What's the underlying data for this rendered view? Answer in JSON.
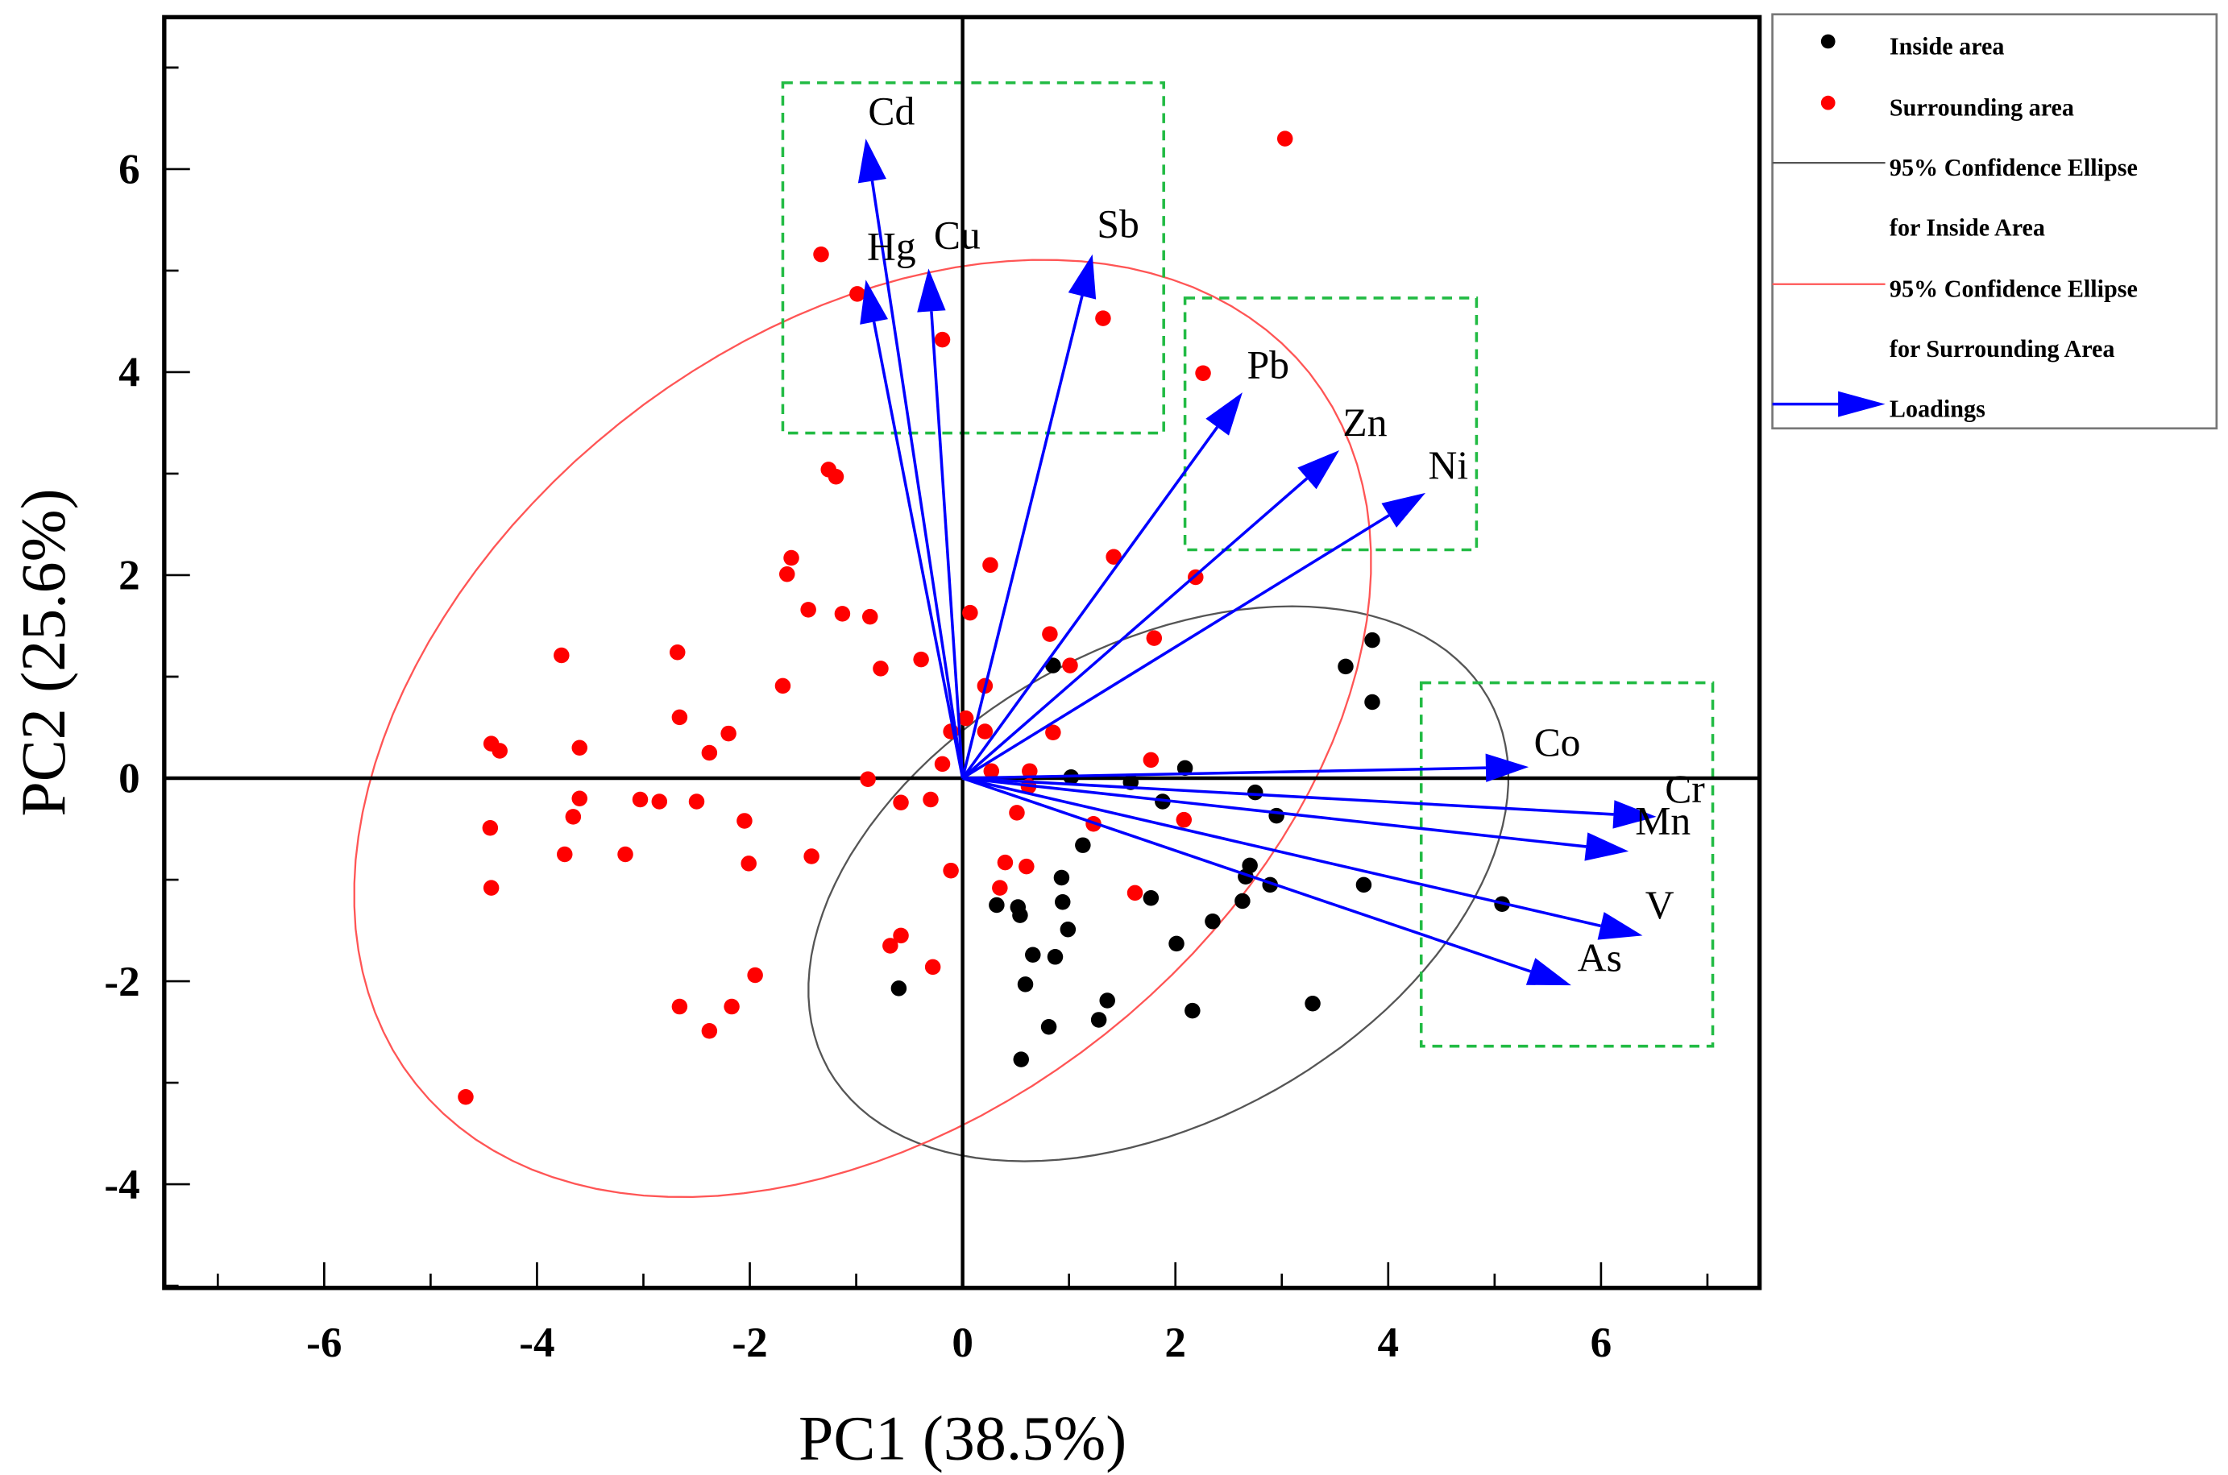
{
  "chart_data": {
    "type": "scatter",
    "subtype": "pca-biplot",
    "xlabel": "PC1 (38.5%)",
    "ylabel": "PC2 (25.6%)",
    "xlim": [
      -7.5,
      7.5
    ],
    "ylim": [
      -5,
      7.5
    ],
    "xticks": [
      -6,
      -4,
      -2,
      0,
      2,
      4,
      6
    ],
    "yticks": [
      -4,
      -2,
      0,
      2,
      4,
      6
    ],
    "grid": false,
    "legend_position": "outside-right-top",
    "colors": {
      "inside": "#000000",
      "surrounding": "#ff0000",
      "inside_ellipse": "#555555",
      "surrounding_ellipse": "#ff5555",
      "loadings": "#0000ff",
      "boxes": "#22bb44"
    },
    "legend": [
      {
        "label": "Inside area",
        "kind": "marker-black"
      },
      {
        "label": "Surrounding area",
        "kind": "marker-red"
      },
      {
        "label": "95% Confidence Ellipse",
        "label2": "for Inside Area",
        "kind": "line-gray"
      },
      {
        "label": "95% Confidence Ellipse",
        "label2": "for Surrounding Area",
        "kind": "line-red"
      },
      {
        "label": "Loadings",
        "kind": "arrow-blue"
      }
    ],
    "series": [
      {
        "name": "Inside area",
        "points": [
          [
            3.85,
            1.36
          ],
          [
            3.6,
            1.1
          ],
          [
            3.85,
            0.75
          ],
          [
            0.85,
            1.11
          ],
          [
            2.09,
            0.1
          ],
          [
            1.02,
            0.01
          ],
          [
            1.58,
            -0.04
          ],
          [
            2.75,
            -0.14
          ],
          [
            1.88,
            -0.23
          ],
          [
            2.95,
            -0.37
          ],
          [
            1.13,
            -0.66
          ],
          [
            2.7,
            -0.86
          ],
          [
            2.66,
            -0.97
          ],
          [
            2.89,
            -1.05
          ],
          [
            0.93,
            -0.98
          ],
          [
            3.77,
            -1.05
          ],
          [
            5.07,
            -1.24
          ],
          [
            2.63,
            -1.21
          ],
          [
            1.77,
            -1.18
          ],
          [
            0.32,
            -1.25
          ],
          [
            0.52,
            -1.27
          ],
          [
            0.54,
            -1.35
          ],
          [
            0.94,
            -1.22
          ],
          [
            0.99,
            -1.49
          ],
          [
            2.35,
            -1.41
          ],
          [
            2.01,
            -1.63
          ],
          [
            0.66,
            -1.74
          ],
          [
            0.87,
            -1.76
          ],
          [
            0.59,
            -2.03
          ],
          [
            -0.6,
            -2.07
          ],
          [
            1.36,
            -2.19
          ],
          [
            3.29,
            -2.22
          ],
          [
            0.81,
            -2.45
          ],
          [
            1.28,
            -2.38
          ],
          [
            2.16,
            -2.29
          ],
          [
            0.55,
            -2.77
          ]
        ]
      },
      {
        "name": "Surrounding area",
        "points": [
          [
            3.03,
            6.3
          ],
          [
            -1.33,
            5.16
          ],
          [
            -0.99,
            4.77
          ],
          [
            -0.19,
            4.32
          ],
          [
            1.32,
            4.53
          ],
          [
            2.26,
            3.99
          ],
          [
            -1.26,
            3.04
          ],
          [
            -1.19,
            2.97
          ],
          [
            -1.61,
            2.17
          ],
          [
            1.42,
            2.18
          ],
          [
            -1.65,
            2.01
          ],
          [
            2.19,
            1.98
          ],
          [
            0.26,
            2.1
          ],
          [
            -1.45,
            1.66
          ],
          [
            -1.13,
            1.62
          ],
          [
            -0.87,
            1.59
          ],
          [
            0.07,
            1.63
          ],
          [
            0.82,
            1.42
          ],
          [
            1.8,
            1.38
          ],
          [
            -3.77,
            1.21
          ],
          [
            -2.68,
            1.24
          ],
          [
            -0.77,
            1.08
          ],
          [
            -0.39,
            1.17
          ],
          [
            1.01,
            1.11
          ],
          [
            -1.69,
            0.91
          ],
          [
            0.21,
            0.91
          ],
          [
            -2.66,
            0.6
          ],
          [
            0.03,
            0.59
          ],
          [
            -0.11,
            0.46
          ],
          [
            0.85,
            0.45
          ],
          [
            0.21,
            0.46
          ],
          [
            -2.2,
            0.44
          ],
          [
            -4.43,
            0.34
          ],
          [
            -4.35,
            0.27
          ],
          [
            -3.6,
            0.3
          ],
          [
            -2.38,
            0.25
          ],
          [
            -0.19,
            0.14
          ],
          [
            1.77,
            0.18
          ],
          [
            0.27,
            0.07
          ],
          [
            0.63,
            0.07
          ],
          [
            -0.89,
            -0.01
          ],
          [
            0.62,
            -0.08
          ],
          [
            -3.6,
            -0.2
          ],
          [
            -3.03,
            -0.21
          ],
          [
            -2.85,
            -0.23
          ],
          [
            -2.5,
            -0.23
          ],
          [
            -0.58,
            -0.24
          ],
          [
            -0.3,
            -0.21
          ],
          [
            -3.66,
            -0.38
          ],
          [
            0.51,
            -0.34
          ],
          [
            -2.05,
            -0.42
          ],
          [
            1.23,
            -0.45
          ],
          [
            2.08,
            -0.41
          ],
          [
            -4.44,
            -0.49
          ],
          [
            -3.74,
            -0.75
          ],
          [
            -3.17,
            -0.75
          ],
          [
            -1.42,
            -0.77
          ],
          [
            -2.01,
            -0.84
          ],
          [
            0.4,
            -0.83
          ],
          [
            0.6,
            -0.87
          ],
          [
            -0.11,
            -0.91
          ],
          [
            -4.43,
            -1.08
          ],
          [
            1.62,
            -1.13
          ],
          [
            0.35,
            -1.08
          ],
          [
            -0.58,
            -1.55
          ],
          [
            -0.68,
            -1.65
          ],
          [
            -1.95,
            -1.94
          ],
          [
            -0.28,
            -1.86
          ],
          [
            -2.66,
            -2.25
          ],
          [
            -2.17,
            -2.25
          ],
          [
            -2.38,
            -2.49
          ],
          [
            -4.67,
            -3.14
          ]
        ]
      }
    ],
    "ellipses": [
      {
        "name": "95% Confidence Ellipse for Inside Area",
        "center": [
          1.84,
          -1.04
        ],
        "axis1": [
          3.1,
          1.83
        ],
        "axis2": [
          1.1,
          -2.03
        ]
      },
      {
        "name": "95% Confidence Ellipse for Surrounding Area",
        "center": [
          -0.94,
          0.49
        ],
        "axis1": [
          4.2,
          3.5
        ],
        "axis2": [
          2.28,
          -3.01
        ]
      }
    ],
    "loadings": [
      {
        "label": "Cd",
        "x": -0.91,
        "y": 6.3
      },
      {
        "label": "Hg",
        "x": -0.91,
        "y": 4.91
      },
      {
        "label": "Cu",
        "x": -0.32,
        "y": 5.02
      },
      {
        "label": "Sb",
        "x": 1.22,
        "y": 5.16
      },
      {
        "label": "Pb",
        "x": 2.63,
        "y": 3.8
      },
      {
        "label": "Zn",
        "x": 3.54,
        "y": 3.23
      },
      {
        "label": "Ni",
        "x": 4.35,
        "y": 2.81
      },
      {
        "label": "Co",
        "x": 5.32,
        "y": 0.11
      },
      {
        "label": "Cr",
        "x": 6.52,
        "y": -0.38
      },
      {
        "label": "Mn",
        "x": 6.26,
        "y": -0.72
      },
      {
        "label": "V",
        "x": 6.39,
        "y": -1.55
      },
      {
        "label": "As",
        "x": 5.72,
        "y": -2.04
      }
    ],
    "group_boxes": [
      {
        "x": [
          -1.69,
          1.89
        ],
        "y": [
          3.4,
          6.85
        ]
      },
      {
        "x": [
          2.09,
          4.83
        ],
        "y": [
          2.25,
          4.73
        ]
      },
      {
        "x": [
          4.31,
          7.05
        ],
        "y": [
          -2.64,
          0.94
        ]
      }
    ]
  }
}
